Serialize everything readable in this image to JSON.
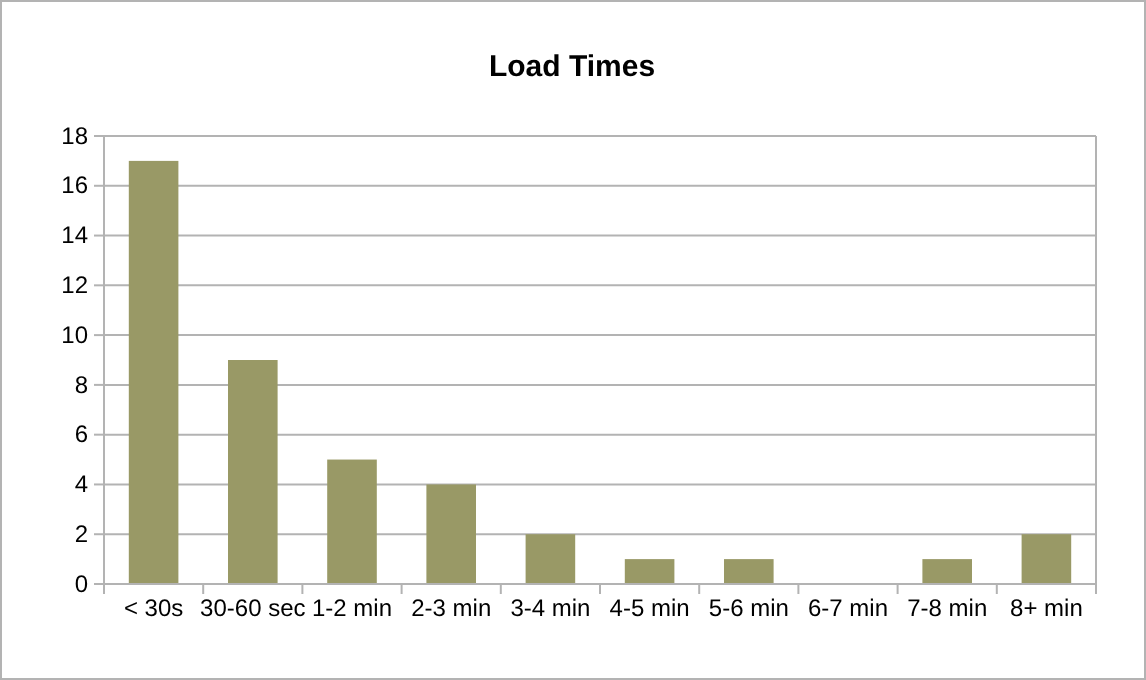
{
  "chart_data": {
    "type": "bar",
    "title": "Load Times",
    "categories": [
      "< 30s",
      "30-60 sec",
      "1-2 min",
      "2-3 min",
      "3-4 min",
      "4-5 min",
      "5-6 min",
      "6-7 min",
      "7-8 min",
      "8+ min"
    ],
    "values": [
      17,
      9,
      5,
      4,
      2,
      1,
      1,
      0,
      1,
      2
    ],
    "color": "#999966",
    "ylim": [
      0,
      18
    ],
    "yticks": [
      0,
      2,
      4,
      6,
      8,
      10,
      12,
      14,
      16,
      18
    ],
    "grid": "y"
  }
}
